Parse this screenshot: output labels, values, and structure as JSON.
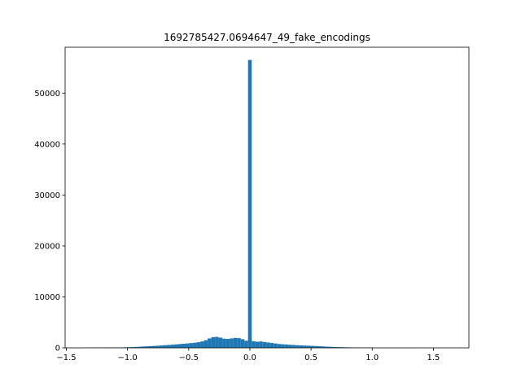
{
  "chart_data": {
    "type": "bar",
    "title": "1692785427.0694647_49_fake_encodings",
    "xlabel": "",
    "ylabel": "",
    "xlim": [
      -1.51,
      1.79
    ],
    "ylim": [
      0,
      59000
    ],
    "xticks": [
      -1.5,
      -1.0,
      -0.5,
      0.0,
      0.5,
      1.0,
      1.5
    ],
    "xtick_labels": [
      "−1.5",
      "−1.0",
      "−0.5",
      "0.0",
      "0.5",
      "1.0",
      "1.5"
    ],
    "yticks": [
      0,
      10000,
      20000,
      30000,
      40000,
      50000
    ],
    "ytick_labels": [
      "0",
      "10000",
      "20000",
      "30000",
      "40000",
      "50000"
    ],
    "grid": false,
    "bar_color": "#1f77b4",
    "bin_width": 0.03,
    "bins": [
      [
        -1.47,
        20
      ],
      [
        -1.44,
        20
      ],
      [
        -1.41,
        20
      ],
      [
        -1.38,
        20
      ],
      [
        -1.35,
        20
      ],
      [
        -1.32,
        20
      ],
      [
        -1.29,
        30
      ],
      [
        -1.26,
        30
      ],
      [
        -1.23,
        30
      ],
      [
        -1.2,
        40
      ],
      [
        -1.17,
        50
      ],
      [
        -1.14,
        50
      ],
      [
        -1.11,
        60
      ],
      [
        -1.08,
        70
      ],
      [
        -1.05,
        80
      ],
      [
        -1.02,
        100
      ],
      [
        -0.99,
        120
      ],
      [
        -0.96,
        150
      ],
      [
        -0.93,
        180
      ],
      [
        -0.9,
        220
      ],
      [
        -0.87,
        260
      ],
      [
        -0.84,
        300
      ],
      [
        -0.81,
        340
      ],
      [
        -0.78,
        380
      ],
      [
        -0.75,
        420
      ],
      [
        -0.72,
        470
      ],
      [
        -0.69,
        520
      ],
      [
        -0.66,
        570
      ],
      [
        -0.63,
        620
      ],
      [
        -0.6,
        680
      ],
      [
        -0.57,
        740
      ],
      [
        -0.54,
        800
      ],
      [
        -0.51,
        860
      ],
      [
        -0.48,
        930
      ],
      [
        -0.45,
        1000
      ],
      [
        -0.42,
        1100
      ],
      [
        -0.39,
        1250
      ],
      [
        -0.36,
        1500
      ],
      [
        -0.33,
        1850
      ],
      [
        -0.3,
        2100
      ],
      [
        -0.27,
        2150
      ],
      [
        -0.24,
        2000
      ],
      [
        -0.21,
        1800
      ],
      [
        -0.18,
        1750
      ],
      [
        -0.15,
        1850
      ],
      [
        -0.12,
        1950
      ],
      [
        -0.09,
        1900
      ],
      [
        -0.06,
        1700
      ],
      [
        -0.03,
        1400
      ],
      [
        0.0,
        56500
      ],
      [
        0.03,
        1300
      ],
      [
        0.06,
        1200
      ],
      [
        0.09,
        1250
      ],
      [
        0.12,
        1150
      ],
      [
        0.15,
        1050
      ],
      [
        0.18,
        950
      ],
      [
        0.21,
        850
      ],
      [
        0.24,
        750
      ],
      [
        0.27,
        700
      ],
      [
        0.3,
        650
      ],
      [
        0.33,
        600
      ],
      [
        0.36,
        560
      ],
      [
        0.39,
        520
      ],
      [
        0.42,
        480
      ],
      [
        0.45,
        450
      ],
      [
        0.48,
        420
      ],
      [
        0.51,
        390
      ],
      [
        0.54,
        350
      ],
      [
        0.57,
        310
      ],
      [
        0.6,
        270
      ],
      [
        0.63,
        230
      ],
      [
        0.66,
        200
      ],
      [
        0.69,
        170
      ],
      [
        0.72,
        150
      ],
      [
        0.75,
        130
      ],
      [
        0.78,
        110
      ],
      [
        0.81,
        95
      ],
      [
        0.84,
        80
      ],
      [
        0.87,
        65
      ],
      [
        0.9,
        50
      ],
      [
        0.93,
        40
      ],
      [
        0.96,
        30
      ],
      [
        0.99,
        25
      ],
      [
        1.02,
        20
      ],
      [
        1.05,
        15
      ],
      [
        1.08,
        12
      ],
      [
        1.11,
        10
      ],
      [
        1.14,
        8
      ],
      [
        1.17,
        6
      ],
      [
        1.2,
        5
      ],
      [
        1.23,
        4
      ],
      [
        1.26,
        4
      ],
      [
        1.29,
        3
      ],
      [
        1.32,
        3
      ],
      [
        1.35,
        2
      ],
      [
        1.38,
        2
      ],
      [
        1.41,
        2
      ],
      [
        1.44,
        1
      ],
      [
        1.47,
        1
      ],
      [
        1.5,
        1
      ],
      [
        1.53,
        1
      ],
      [
        1.56,
        1
      ],
      [
        1.59,
        1
      ],
      [
        1.62,
        1
      ]
    ]
  }
}
